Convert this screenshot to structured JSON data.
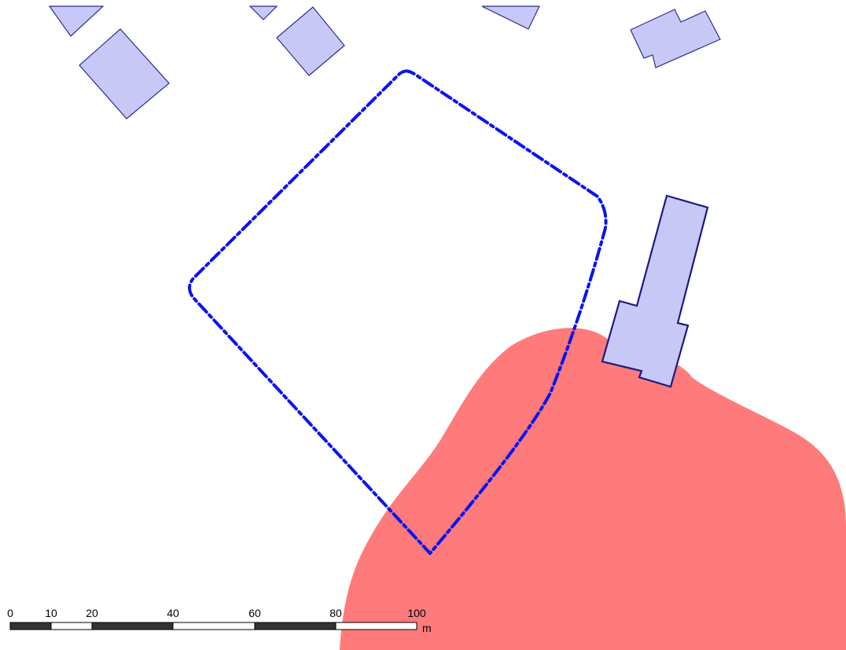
{
  "colors": {
    "background": "#ffffff",
    "building_fill": "#c8c8f7",
    "building_outline": "#2b2b8f",
    "highlighted_building_outline": "#1a1a80",
    "hazard_zone": "#ff7a7a",
    "site_boundary": "#0a14f0",
    "scale_bar_dark": "#333333",
    "scale_bar_light": "#ffffff"
  },
  "layers": [
    {
      "name": "buildings",
      "style": "filled polygons"
    },
    {
      "name": "hazard_zone",
      "style": "filled area"
    },
    {
      "name": "site_boundary",
      "style": "dash-dot outline"
    }
  ],
  "scale_bar": {
    "ticks": [
      "0",
      "10",
      "20",
      "40",
      "60",
      "80",
      "100"
    ],
    "unit": "m"
  }
}
